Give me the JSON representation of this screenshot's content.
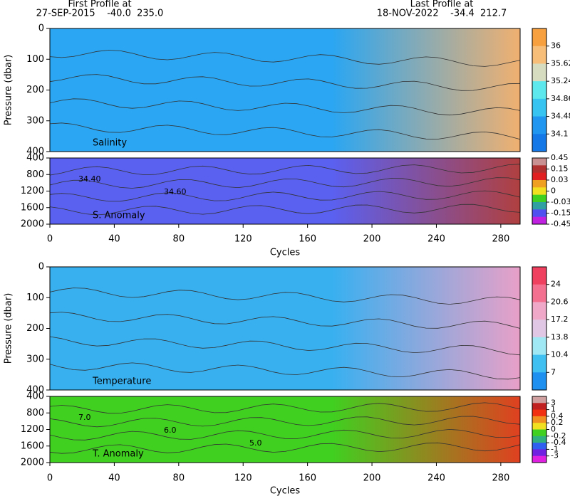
{
  "header": {
    "first_label": "First Profile at",
    "first_info": "27-SEP-2015    -40.0  235.0",
    "last_label": "Last Profile at",
    "last_info": "18-NOV-2022    -34.4  212.7"
  },
  "xaxis": {
    "xlim": [
      0,
      292
    ],
    "xticks": [
      0,
      40,
      80,
      120,
      160,
      200,
      240,
      280
    ],
    "xlabel": "Cycles"
  },
  "ylabel": "Pressure (dbar)",
  "panels": [
    {
      "label": "Salinity",
      "ylim": [
        0,
        400
      ],
      "yticks": [
        0,
        100,
        200,
        300,
        400
      ],
      "colorbar": [
        36,
        35.62,
        35.24,
        34.86,
        34.48,
        34.1
      ],
      "colors": [
        "#f6a040",
        "#f6be78",
        "#d6dcc0",
        "#5ce8ec",
        "#38c4f0",
        "#2096f0",
        "#1478e6"
      ],
      "left_color": "#2aa6f2",
      "right_color": "#f0b070",
      "annotations": []
    },
    {
      "label": "S. Anomaly",
      "ylim": [
        400,
        2000
      ],
      "yticks": [
        400,
        800,
        1200,
        1600,
        2000
      ],
      "colorbar": [
        0.45,
        0.15,
        0.03,
        0,
        -0.03,
        -0.15,
        -0.45
      ],
      "colors": [
        "#c89090",
        "#b03030",
        "#e02020",
        "#f0a020",
        "#f0e020",
        "#40d020",
        "#30a0a0",
        "#5050f0",
        "#c020e0"
      ],
      "left_color": "#5a60f0",
      "right_color": "#b04040",
      "annotations": [
        "34.40",
        "34.60"
      ]
    },
    {
      "label": "Temperature",
      "ylim": [
        0,
        400
      ],
      "yticks": [
        0,
        100,
        200,
        300,
        400
      ],
      "colorbar": [
        24,
        20.6,
        17.2,
        13.8,
        10.4,
        7
      ],
      "colors": [
        "#f04060",
        "#f47090",
        "#f0a8c8",
        "#e0c8e4",
        "#a0e8f4",
        "#40c0f0",
        "#1e90f0"
      ],
      "left_color": "#38b0f0",
      "right_color": "#e8a0c8",
      "annotations": []
    },
    {
      "label": "T. Anomaly",
      "ylim": [
        400,
        2000
      ],
      "yticks": [
        400,
        800,
        1200,
        1600,
        2000
      ],
      "colorbar": [
        3,
        1,
        0.4,
        0.2,
        0,
        -0.2,
        -0.4,
        -1,
        -3
      ],
      "colors": [
        "#d0a0a0",
        "#c02020",
        "#f03010",
        "#f09020",
        "#f0e020",
        "#40d020",
        "#30b080",
        "#3060f0",
        "#7020e0",
        "#e020e0"
      ],
      "left_color": "#40d020",
      "right_color": "#e04020",
      "annotations": [
        "7.0",
        "6.0",
        "5.0"
      ]
    }
  ]
}
